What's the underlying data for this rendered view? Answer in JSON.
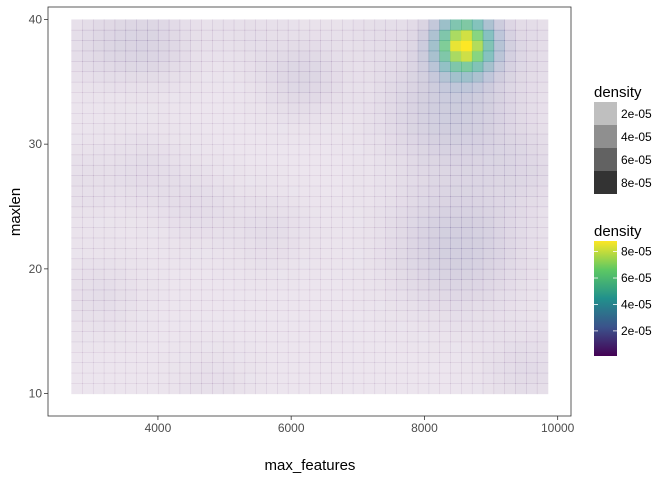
{
  "chart_data": {
    "type": "heatmap",
    "title": "",
    "xlabel": "max_features",
    "ylabel": "maxlen",
    "xlim": [
      2350,
      10200
    ],
    "ylim": [
      8.2,
      41.0
    ],
    "data_extent": {
      "x": [
        2700,
        9850
      ],
      "y": [
        10,
        40
      ]
    },
    "x_ticks": [
      {
        "value": 4000,
        "label": "4000"
      },
      {
        "value": 6000,
        "label": "6000"
      },
      {
        "value": 8000,
        "label": "8000"
      },
      {
        "value": 10000,
        "label": "10000"
      }
    ],
    "y_ticks": [
      {
        "value": 10,
        "label": "10"
      },
      {
        "value": 20,
        "label": "20"
      },
      {
        "value": 30,
        "label": "30"
      },
      {
        "value": 40,
        "label": "40"
      }
    ],
    "density_peaks": [
      {
        "x": 8600,
        "y": 38,
        "density": 8.6e-05
      },
      {
        "x": 8450,
        "y": 33,
        "density": 1.5e-05
      },
      {
        "x": 8500,
        "y": 22,
        "density": 1.3e-05
      },
      {
        "x": 3950,
        "y": 38,
        "density": 8e-06
      },
      {
        "x": 3200,
        "y": 38,
        "density": 6e-06
      },
      {
        "x": 6150,
        "y": 35.5,
        "density": 8e-06
      },
      {
        "x": 9500,
        "y": 28,
        "density": 5e-06
      },
      {
        "x": 9500,
        "y": 12,
        "density": 5e-06
      },
      {
        "x": 3800,
        "y": 28,
        "density": 4e-06
      },
      {
        "x": 4600,
        "y": 25,
        "density": 4e-06
      },
      {
        "x": 5700,
        "y": 23,
        "density": 4e-06
      },
      {
        "x": 3150,
        "y": 18,
        "density": 4e-06
      },
      {
        "x": 2800,
        "y": 27,
        "density": 3e-06
      },
      {
        "x": 4800,
        "y": 10.5,
        "density": 3e-06
      },
      {
        "x": 5300,
        "y": 39,
        "density": 3e-06
      },
      {
        "x": 7300,
        "y": 39,
        "density": 3e-06
      },
      {
        "x": 9600,
        "y": 38,
        "density": 4e-06
      }
    ],
    "density_floor": 1e-06,
    "colorscale": "viridis",
    "grid": false,
    "legend_position": "right",
    "legends": [
      {
        "title": "density",
        "kind": "alpha",
        "entries": [
          {
            "label": "2e-05",
            "color": "#BFBFBF"
          },
          {
            "label": "4e-05",
            "color": "#8F8F8F"
          },
          {
            "label": "6e-05",
            "color": "#626262"
          },
          {
            "label": "8e-05",
            "color": "#333333"
          }
        ]
      },
      {
        "title": "density",
        "kind": "colorbar",
        "colors": [
          "#440154",
          "#3B528B",
          "#21908C",
          "#5DC863",
          "#FDE725"
        ],
        "ticks": [
          {
            "value": 2e-05,
            "label": "2e-05"
          },
          {
            "value": 4e-05,
            "label": "4e-05"
          },
          {
            "value": 6e-05,
            "label": "6e-05"
          },
          {
            "value": 8e-05,
            "label": "8e-05"
          }
        ],
        "range": [
          1e-06,
          8.8e-05
        ]
      }
    ]
  }
}
